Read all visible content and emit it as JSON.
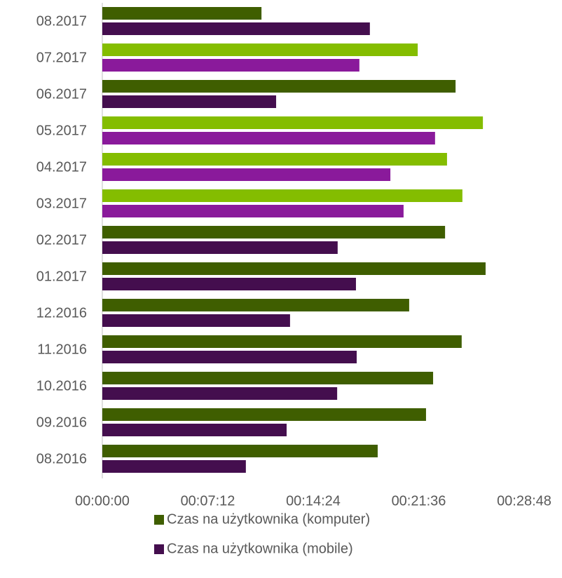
{
  "chart_data": {
    "type": "hbar",
    "categories": [
      "08.2017",
      "07.2017",
      "06.2017",
      "05.2017",
      "04.2017",
      "03.2017",
      "02.2017",
      "01.2017",
      "12.2016",
      "11.2016",
      "10.2016",
      "09.2016",
      "08.2016"
    ],
    "series": [
      {
        "name": "Czas na użytkownika (komputer)",
        "color": "#3f5e00",
        "colors": [
          "#3f5e00",
          "#84bd00",
          "#3f5e00",
          "#84bd00",
          "#84bd00",
          "#84bd00",
          "#3f5e00",
          "#3f5e00",
          "#3f5e00",
          "#3f5e00",
          "#3f5e00",
          "#3f5e00",
          "#3f5e00"
        ],
        "values": [
          652,
          1292,
          1447,
          1559,
          1412,
          1475,
          1404,
          1570,
          1257,
          1472,
          1355,
          1326,
          1128
        ]
      },
      {
        "name": "Czas na użytkownika (mobile)",
        "color": "#440e4e",
        "colors": [
          "#440e4e",
          "#8a1a9b",
          "#440e4e",
          "#8a1a9b",
          "#8a1a9b",
          "#8a1a9b",
          "#440e4e",
          "#440e4e",
          "#440e4e",
          "#440e4e",
          "#440e4e",
          "#440e4e",
          "#440e4e"
        ],
        "values": [
          1096,
          1053,
          712,
          1363,
          1180,
          1234,
          964,
          1039,
          769,
          1042,
          962,
          755,
          588
        ]
      }
    ],
    "xlim": [
      0,
      1728
    ],
    "xticks": [
      {
        "value": 0,
        "label": "00:00:00"
      },
      {
        "value": 432,
        "label": "00:07:12"
      },
      {
        "value": 864,
        "label": "00:14:24"
      },
      {
        "value": 1296,
        "label": "00:21:36"
      },
      {
        "value": 1728,
        "label": "00:28:48"
      }
    ]
  }
}
